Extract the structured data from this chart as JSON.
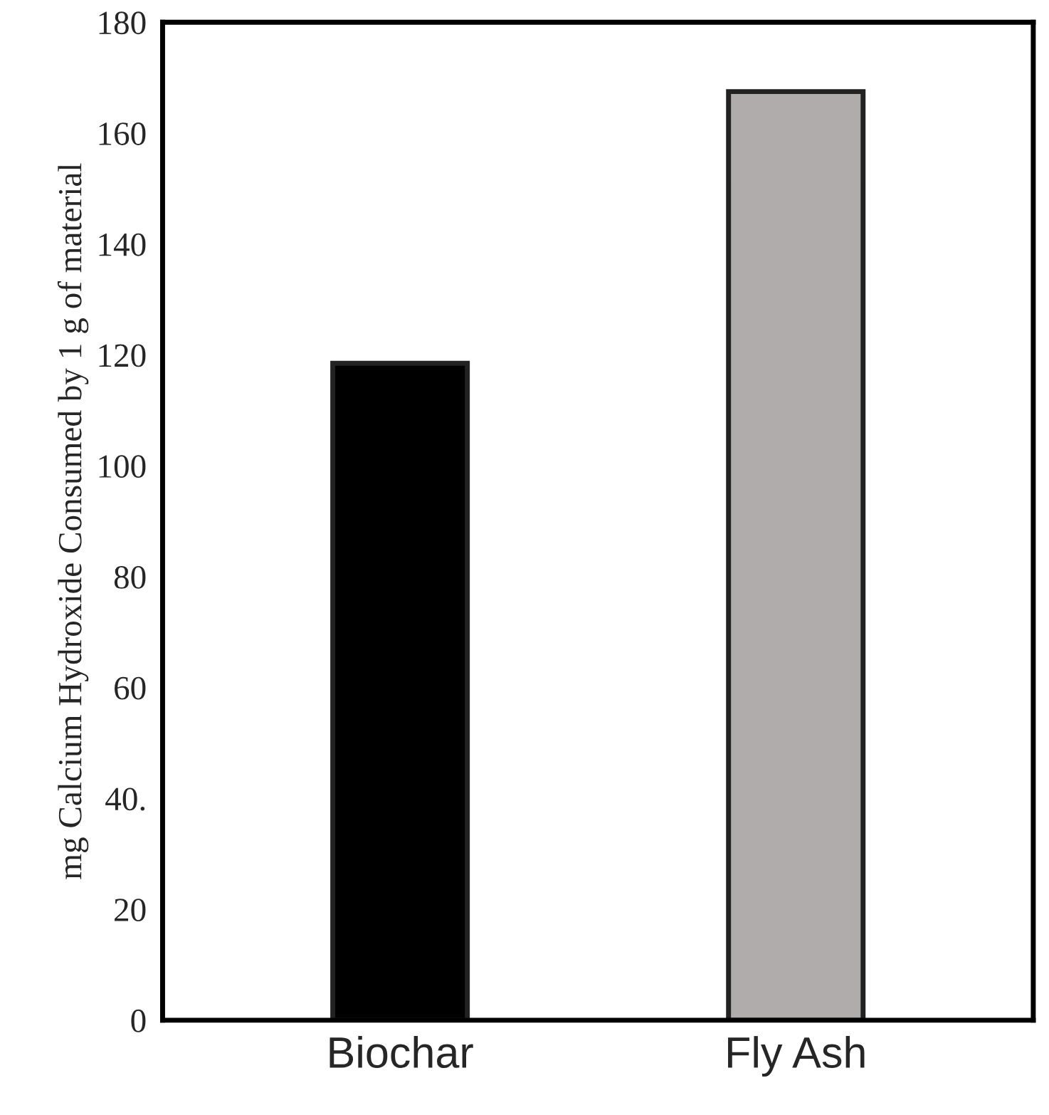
{
  "chart_data": {
    "type": "bar",
    "ylabel": "mg Calcium Hydroxide Consumed by 1 g of material",
    "categories": [
      "Biochar",
      "Fly Ash"
    ],
    "values": [
      118.5,
      167.5
    ],
    "colors": [
      "#000000",
      "#b0acab"
    ],
    "ylim": [
      0,
      180
    ],
    "yticks": [
      0,
      20,
      {
        "value": 40,
        "label": "40."
      },
      60,
      80,
      100,
      120,
      140,
      160,
      180
    ],
    "grid": false
  }
}
